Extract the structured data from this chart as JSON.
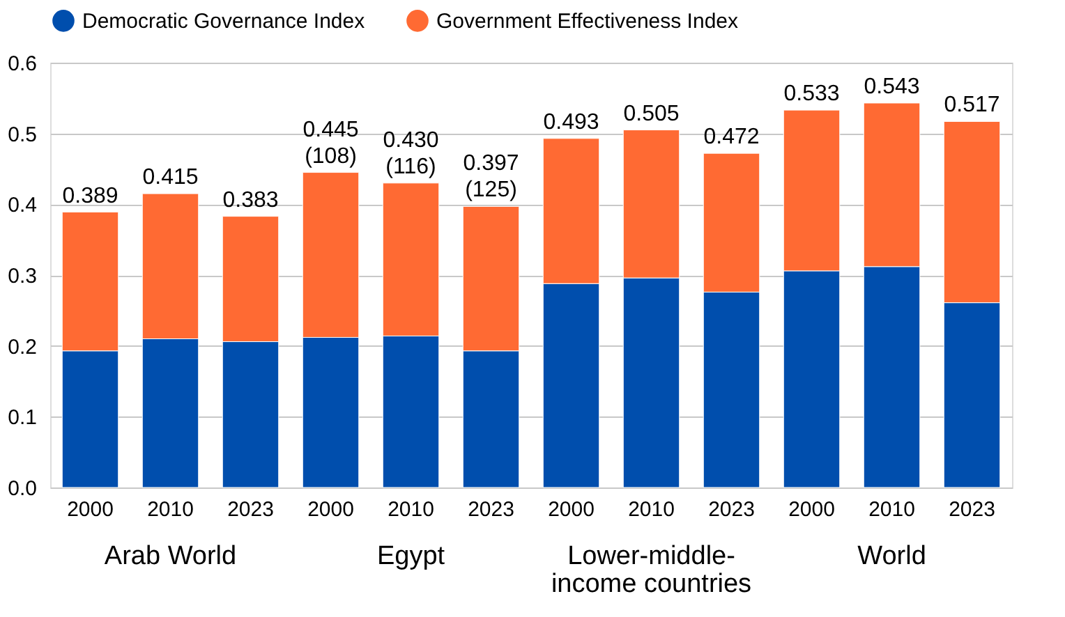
{
  "chart_data": {
    "type": "bar",
    "stacked": true,
    "categories": [
      "2000",
      "2010",
      "2023",
      "2000",
      "2010",
      "2023",
      "2000",
      "2010",
      "2023",
      "2000",
      "2010",
      "2023"
    ],
    "series": [
      {
        "name": "Democratic Governance Index",
        "color": "#004ead",
        "values": [
          0.193,
          0.21,
          0.206,
          0.212,
          0.214,
          0.193,
          0.288,
          0.296,
          0.276,
          0.306,
          0.312,
          0.261
        ]
      },
      {
        "name": "Government Effectiveness Index",
        "color": "#ff6a33",
        "values": [
          0.196,
          0.205,
          0.177,
          0.233,
          0.216,
          0.204,
          0.205,
          0.209,
          0.196,
          0.227,
          0.231,
          0.256
        ]
      }
    ],
    "totals": [
      "0.389",
      "0.415",
      "0.383",
      "0.445 (108)",
      "0.430 (116)",
      "0.397 (125)",
      "0.493",
      "0.505",
      "0.472",
      "0.533",
      "0.543",
      "0.517"
    ],
    "annotations": [
      "Arab World",
      "Egypt",
      "Lower-middle-income countries",
      "World"
    ],
    "ylim": [
      0,
      0.6
    ],
    "yticks": [
      {
        "value": 0,
        "label": "0.0"
      },
      0.1,
      0.2,
      0.3,
      0.4,
      0.5,
      0.6
    ],
    "grid": "y",
    "legend": "top"
  }
}
